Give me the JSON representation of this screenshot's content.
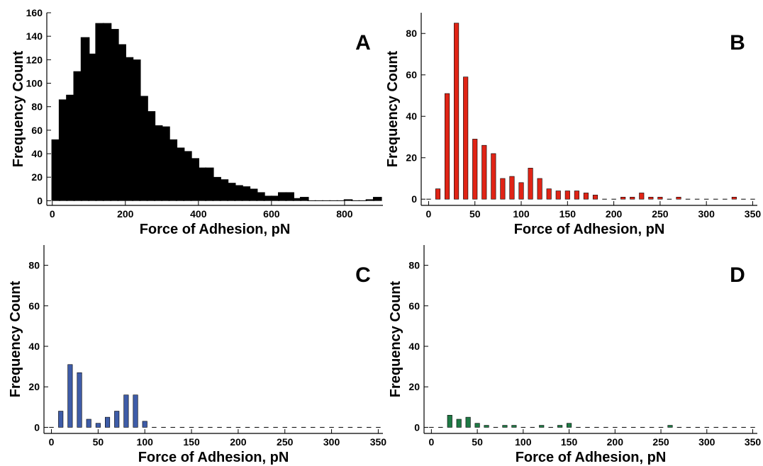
{
  "figure": {
    "xlabel": "Force of Adhesion, pN",
    "ylabel": "Frequency Count"
  },
  "chart_data": [
    {
      "type": "bar",
      "panel": "A",
      "color": "#000000",
      "xlabel": "Force of Adhesion, pN",
      "ylabel": "Frequency Count",
      "xlim": [
        -15,
        905
      ],
      "ylim": [
        -4,
        160
      ],
      "xticks": [
        0,
        200,
        400,
        600,
        800
      ],
      "yticks": [
        0,
        20,
        40,
        60,
        80,
        100,
        120,
        140,
        160
      ],
      "x": [
        10,
        30,
        50,
        70,
        90,
        110,
        130,
        150,
        170,
        190,
        210,
        230,
        250,
        270,
        290,
        310,
        330,
        350,
        370,
        390,
        410,
        430,
        450,
        470,
        490,
        510,
        530,
        550,
        570,
        590,
        610,
        630,
        650,
        670,
        690,
        710,
        730,
        750,
        770,
        790,
        810,
        830,
        850,
        870,
        890
      ],
      "values": [
        52,
        86,
        90,
        110,
        139,
        125,
        151,
        151,
        146,
        133,
        122,
        120,
        89,
        76,
        64,
        63,
        52,
        45,
        42,
        36,
        28,
        28,
        20,
        18,
        15,
        13,
        12,
        10,
        7,
        4,
        4,
        7,
        7,
        2,
        3,
        0,
        0,
        0,
        0,
        0,
        1,
        0,
        0,
        1,
        3
      ]
    },
    {
      "type": "bar",
      "panel": "B",
      "color": "#e02416",
      "xlabel": "Force of Adhesion, pN",
      "ylabel": "Frequency Count",
      "xlim": [
        -8,
        355
      ],
      "ylim": [
        -3,
        90
      ],
      "xticks": [
        0,
        50,
        100,
        150,
        200,
        250,
        300,
        350
      ],
      "yticks": [
        0,
        20,
        40,
        60,
        80
      ],
      "x": [
        0,
        10,
        20,
        30,
        40,
        50,
        60,
        70,
        80,
        90,
        100,
        110,
        120,
        130,
        140,
        150,
        160,
        170,
        180,
        190,
        200,
        210,
        220,
        230,
        240,
        250,
        260,
        270,
        280,
        290,
        300,
        310,
        320,
        330,
        340,
        350
      ],
      "values": [
        0,
        5,
        51,
        85,
        59,
        29,
        26,
        22,
        10,
        11,
        8,
        15,
        10,
        5,
        4,
        4,
        4,
        3,
        2,
        0,
        0,
        1,
        1,
        3,
        1,
        1,
        0,
        1,
        0,
        0,
        0,
        0,
        0,
        1,
        0,
        0
      ]
    },
    {
      "type": "bar",
      "panel": "C",
      "color": "#3e5ca8",
      "xlabel": "Force of Adhesion, pN",
      "ylabel": "Frequency Count",
      "xlim": [
        -8,
        355
      ],
      "ylim": [
        -3,
        90
      ],
      "xticks": [
        0,
        50,
        100,
        150,
        200,
        250,
        300,
        350
      ],
      "yticks": [
        0,
        20,
        40,
        60,
        80
      ],
      "x": [
        0,
        10,
        20,
        30,
        40,
        50,
        60,
        70,
        80,
        90,
        100,
        110,
        120,
        130,
        140,
        150,
        160,
        170,
        180,
        190,
        200,
        210,
        220,
        230,
        240,
        250,
        260,
        270,
        280,
        290,
        300,
        310,
        320,
        330,
        340,
        350
      ],
      "values": [
        0,
        8,
        31,
        27,
        4,
        2,
        5,
        8,
        16,
        16,
        3,
        0,
        0,
        0,
        0,
        0,
        0,
        0,
        0,
        0,
        0,
        0,
        0,
        0,
        0,
        0,
        0,
        0,
        0,
        0,
        0,
        0,
        0,
        0,
        0,
        0
      ]
    },
    {
      "type": "bar",
      "panel": "D",
      "color": "#1f7a45",
      "xlabel": "Force of Adhesion, pN",
      "ylabel": "Frequency Count",
      "xlim": [
        -8,
        355
      ],
      "ylim": [
        -3,
        90
      ],
      "xticks": [
        0,
        50,
        100,
        150,
        200,
        250,
        300,
        350
      ],
      "yticks": [
        0,
        20,
        40,
        60,
        80
      ],
      "x": [
        0,
        10,
        20,
        30,
        40,
        50,
        60,
        70,
        80,
        90,
        100,
        110,
        120,
        130,
        140,
        150,
        160,
        170,
        180,
        190,
        200,
        210,
        220,
        230,
        240,
        250,
        260,
        270,
        280,
        290,
        300,
        310,
        320,
        330,
        340,
        350
      ],
      "values": [
        0,
        0,
        6,
        4,
        5,
        2,
        1,
        0,
        1,
        1,
        0,
        0,
        1,
        0,
        1,
        2,
        0,
        0,
        0,
        0,
        0,
        0,
        0,
        0,
        0,
        0,
        1,
        0,
        0,
        0,
        0,
        0,
        0,
        0,
        0,
        0
      ]
    }
  ]
}
